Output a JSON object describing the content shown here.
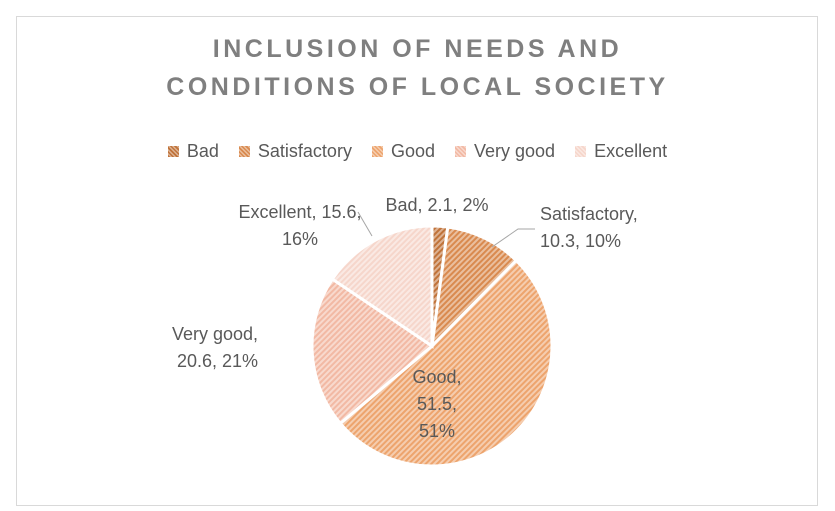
{
  "chart_data": {
    "type": "pie",
    "title_lines": [
      "INCLUSION OF NEEDS AND",
      "CONDITIONS OF LOCAL SOCIETY"
    ],
    "categories": [
      "Bad",
      "Satisfactory",
      "Good",
      "Very good",
      "Excellent"
    ],
    "values": [
      2.1,
      10.3,
      51.5,
      20.6,
      15.6
    ],
    "percent_labels": [
      "2%",
      "10%",
      "51%",
      "21%",
      "16%"
    ],
    "data_labels": [
      [
        "Bad, 2.1, 2%"
      ],
      [
        "Satisfactory,",
        "10.3, 10%"
      ],
      [
        "Good,",
        "51.5,",
        "51%"
      ],
      [
        "Very good,",
        "20.6, 21%"
      ],
      [
        "Excellent, 15.6,",
        "16%"
      ]
    ],
    "colors": [
      "#c0733a",
      "#d98a4f",
      "#eda46d",
      "#f2b9a4",
      "#f6d6cb"
    ],
    "legend_position": "top",
    "fill_pattern": "diagonal-hatch"
  }
}
